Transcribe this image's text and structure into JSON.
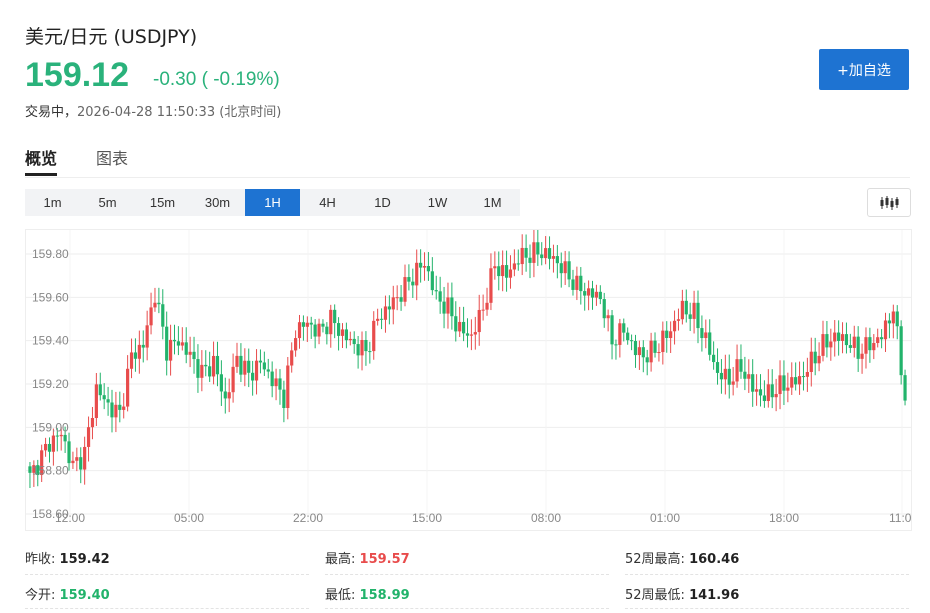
{
  "header": {
    "title": "美元/日元  (USDJPY)",
    "price": "159.12",
    "change": "-0.30 ( -0.19%)",
    "status_label": "交易中，",
    "timestamp": "2026-04-28 11:50:33 (北京时间)",
    "add_button": "+加自选"
  },
  "tabs": [
    {
      "label": "概览",
      "active": true
    },
    {
      "label": "图表",
      "active": false
    }
  ],
  "timeframes": [
    "1m",
    "5m",
    "15m",
    "30m",
    "1H",
    "4H",
    "1D",
    "1W",
    "1M"
  ],
  "active_timeframe": "1H",
  "chart_type_icon": "candlestick-icon",
  "colors": {
    "up": "#e84c4c",
    "down": "#22b36b",
    "accent": "#1e73d2",
    "price": "#2ab27b"
  },
  "stats": {
    "prev_close_label": "昨收:",
    "prev_close": "159.42",
    "open_label": "今开:",
    "open": "159.40",
    "high_label": "最高:",
    "high": "159.57",
    "low_label": "最低:",
    "low": "158.99",
    "w52_high_label": "52周最高:",
    "w52_high": "160.46",
    "w52_low_label": "52周最低:",
    "w52_low": "141.96"
  },
  "chart_data": {
    "type": "candlestick",
    "y_ticks": [
      "159.80",
      "159.60",
      "159.40",
      "159.20",
      "159.00",
      "158.80",
      "158.60"
    ],
    "y_tick_values": [
      159.8,
      159.6,
      159.4,
      159.2,
      159.0,
      158.8,
      158.6
    ],
    "ylim": [
      158.6,
      159.85
    ],
    "x_ticks": [
      "12:00",
      "05:00",
      "22:00",
      "15:00",
      "08:00",
      "01:00",
      "18:00",
      "11:0"
    ],
    "grid": true,
    "anchors": [
      [
        0,
        158.77
      ],
      [
        5,
        158.93
      ],
      [
        8,
        158.97
      ],
      [
        11,
        158.82
      ],
      [
        14,
        158.88
      ],
      [
        17,
        159.18
      ],
      [
        20,
        159.1
      ],
      [
        23,
        159.06
      ],
      [
        26,
        159.33
      ],
      [
        29,
        159.38
      ],
      [
        32,
        159.62
      ],
      [
        35,
        159.36
      ],
      [
        38,
        159.4
      ],
      [
        41,
        159.33
      ],
      [
        44,
        159.25
      ],
      [
        47,
        159.3
      ],
      [
        50,
        159.12
      ],
      [
        53,
        159.32
      ],
      [
        56,
        159.24
      ],
      [
        59,
        159.3
      ],
      [
        62,
        159.22
      ],
      [
        65,
        159.14
      ],
      [
        68,
        159.45
      ],
      [
        71,
        159.48
      ],
      [
        74,
        159.44
      ],
      [
        77,
        159.5
      ],
      [
        80,
        159.43
      ],
      [
        83,
        159.38
      ],
      [
        86,
        159.35
      ],
      [
        89,
        159.5
      ],
      [
        92,
        159.56
      ],
      [
        95,
        159.62
      ],
      [
        98,
        159.7
      ],
      [
        101,
        159.76
      ],
      [
        104,
        159.6
      ],
      [
        107,
        159.55
      ],
      [
        110,
        159.45
      ],
      [
        113,
        159.42
      ],
      [
        116,
        159.55
      ],
      [
        119,
        159.75
      ],
      [
        122,
        159.7
      ],
      [
        125,
        159.78
      ],
      [
        128,
        159.8
      ],
      [
        131,
        159.81
      ],
      [
        134,
        159.78
      ],
      [
        137,
        159.72
      ],
      [
        140,
        159.65
      ],
      [
        143,
        159.62
      ],
      [
        146,
        159.6
      ],
      [
        149,
        159.4
      ],
      [
        152,
        159.45
      ],
      [
        155,
        159.35
      ],
      [
        158,
        159.33
      ],
      [
        161,
        159.38
      ],
      [
        164,
        159.45
      ],
      [
        167,
        159.55
      ],
      [
        170,
        159.52
      ],
      [
        173,
        159.4
      ],
      [
        176,
        159.25
      ],
      [
        179,
        159.22
      ],
      [
        182,
        159.28
      ],
      [
        185,
        159.18
      ],
      [
        188,
        159.14
      ],
      [
        191,
        159.18
      ],
      [
        194,
        159.2
      ],
      [
        197,
        159.22
      ],
      [
        200,
        159.3
      ],
      [
        203,
        159.38
      ],
      [
        206,
        159.42
      ],
      [
        209,
        159.4
      ],
      [
        212,
        159.35
      ],
      [
        215,
        159.38
      ],
      [
        218,
        159.42
      ],
      [
        221,
        159.55
      ],
      [
        224,
        159.14
      ]
    ]
  }
}
